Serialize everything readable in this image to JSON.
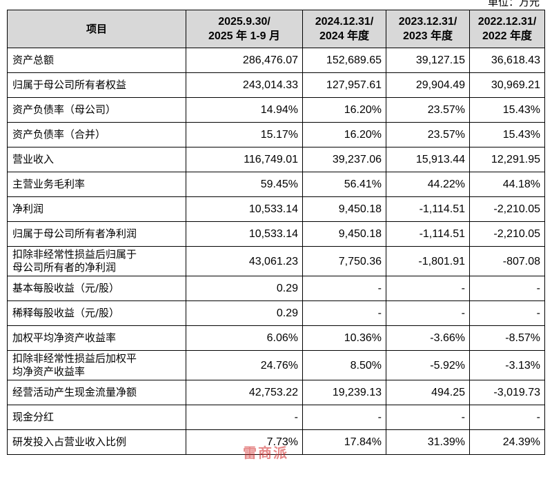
{
  "unit_label": "单位：万元",
  "header": {
    "item": "项目",
    "cols": [
      [
        "2025.9.30/",
        "2025 年 1-9 月"
      ],
      [
        "2024.12.31/",
        "2024 年度"
      ],
      [
        "2023.12.31/",
        "2023 年度"
      ],
      [
        "2022.12.31/",
        "2022 年度"
      ]
    ]
  },
  "rows": [
    {
      "label": [
        "资产总额"
      ],
      "values": [
        "286,476.07",
        "152,689.65",
        "39,127.15",
        "36,618.43"
      ]
    },
    {
      "label": [
        "归属于母公司所有者权益"
      ],
      "values": [
        "243,014.33",
        "127,957.61",
        "29,904.49",
        "30,969.21"
      ]
    },
    {
      "label": [
        "资产负债率（母公司）"
      ],
      "values": [
        "14.94%",
        "16.20%",
        "23.57%",
        "15.43%"
      ]
    },
    {
      "label": [
        "资产负债率（合并）"
      ],
      "values": [
        "15.17%",
        "16.20%",
        "23.57%",
        "15.43%"
      ]
    },
    {
      "label": [
        "营业收入"
      ],
      "values": [
        "116,749.01",
        "39,237.06",
        "15,913.44",
        "12,291.95"
      ]
    },
    {
      "label": [
        "主营业务毛利率"
      ],
      "values": [
        "59.45%",
        "56.41%",
        "44.22%",
        "44.18%"
      ]
    },
    {
      "label": [
        "净利润"
      ],
      "values": [
        "10,533.14",
        "9,450.18",
        "-1,114.51",
        "-2,210.05"
      ]
    },
    {
      "label": [
        "归属于母公司所有者净利润"
      ],
      "values": [
        "10,533.14",
        "9,450.18",
        "-1,114.51",
        "-2,210.05"
      ]
    },
    {
      "label": [
        "扣除非经常性损益后归属于",
        "母公司所有者的净利润"
      ],
      "values": [
        "43,061.23",
        "7,750.36",
        "-1,801.91",
        "-807.08"
      ]
    },
    {
      "label": [
        "基本每股收益（元/股）"
      ],
      "values": [
        "0.29",
        "-",
        "-",
        "-"
      ]
    },
    {
      "label": [
        "稀释每股收益（元/股）"
      ],
      "values": [
        "0.29",
        "-",
        "-",
        "-"
      ]
    },
    {
      "label": [
        "加权平均净资产收益率"
      ],
      "values": [
        "6.06%",
        "10.36%",
        "-3.66%",
        "-8.57%"
      ]
    },
    {
      "label": [
        "扣除非经常性损益后加权平",
        "均净资产收益率"
      ],
      "values": [
        "24.76%",
        "8.50%",
        "-5.92%",
        "-3.13%"
      ]
    },
    {
      "label": [
        "经营活动产生现金流量净额"
      ],
      "values": [
        "42,753.22",
        "19,239.13",
        "494.25",
        "-3,019.73"
      ]
    },
    {
      "label": [
        "现金分红"
      ],
      "values": [
        "-",
        "-",
        "-",
        "-"
      ]
    },
    {
      "label": [
        "研发投入占营业收入比例"
      ],
      "values": [
        "7.73%",
        "17.84%",
        "31.39%",
        "24.39%"
      ]
    }
  ],
  "watermark": "雷商派"
}
